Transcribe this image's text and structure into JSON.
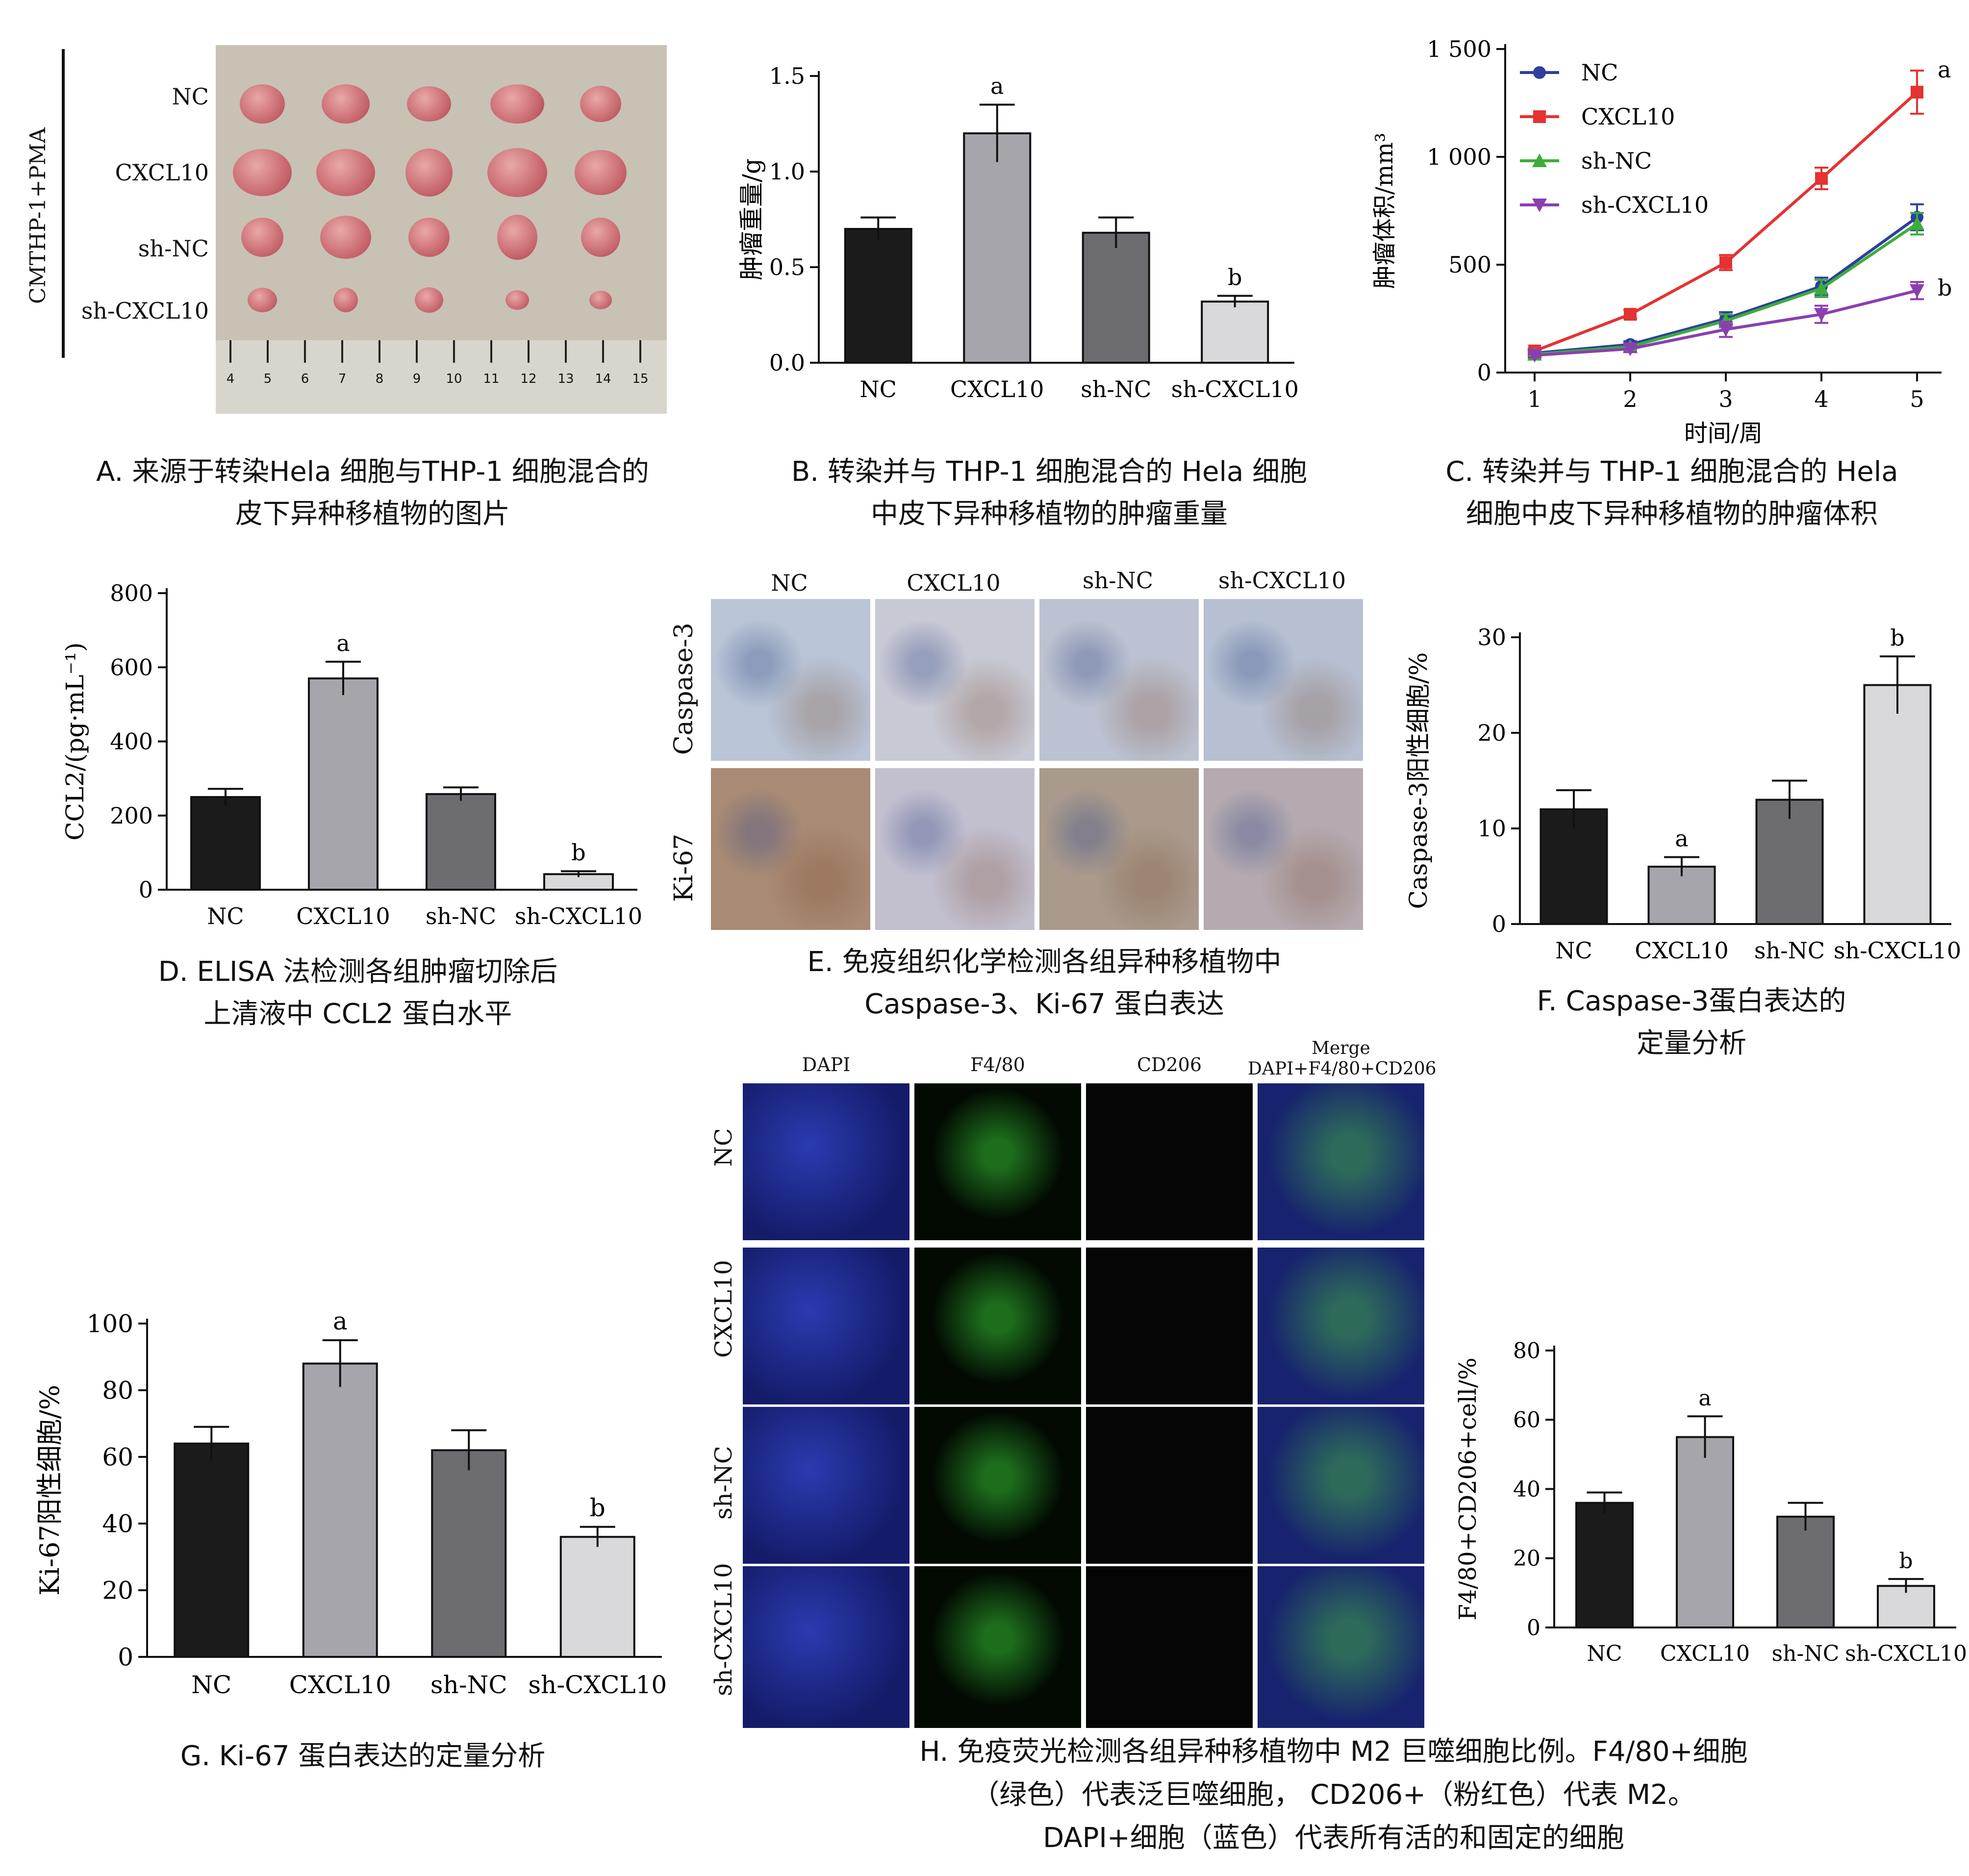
{
  "panels": {
    "A": {
      "side_label": "CMTHP-1+PMA",
      "rows": [
        "NC",
        "CXCL10",
        "sh-NC",
        "sh-CXCL10"
      ],
      "ruler_ticks": [
        "4",
        "5",
        "6",
        "7",
        "8",
        "9",
        "10",
        "11",
        "12",
        "13",
        "14",
        "15"
      ],
      "caption": [
        "A. 来源于转染Hela 细胞与THP-1 细胞混合的",
        "皮下异种移植物的图片"
      ]
    },
    "B": {
      "caption": [
        "B. 转染并与 THP-1 细胞混合的 Hela 细胞",
        "中皮下异种移植物的肿瘤重量"
      ]
    },
    "C": {
      "caption": [
        "C. 转染并与 THP-1 细胞混合的 Hela",
        "细胞中皮下异种移植物的肿瘤体积"
      ]
    },
    "D": {
      "caption": [
        "D. ELISA 法检测各组肿瘤切除后",
        "上清液中 CCL2 蛋白水平"
      ]
    },
    "E": {
      "columns": [
        "NC",
        "CXCL10",
        "sh-NC",
        "sh-CXCL10"
      ],
      "rows": [
        "Caspase-3",
        "Ki-67"
      ],
      "caption": [
        "E. 免疫组织化学检测各组异种移植物中",
        "Caspase-3、Ki-67 蛋白表达"
      ]
    },
    "F": {
      "caption": [
        "F. Caspase-3蛋白表达的",
        "定量分析"
      ]
    },
    "G": {
      "caption": [
        "G. Ki-67 蛋白表达的定量分析"
      ]
    },
    "H": {
      "columns": [
        "DAPI",
        "F4/80",
        "CD206",
        "Merge",
        "DAPI+F4/80+CD206"
      ],
      "rows": [
        "NC",
        "CXCL10",
        "sh-NC",
        "sh-CXCL10"
      ],
      "caption": [
        "H. 免疫荧光检测各组异种移植物中 M2 巨噬细胞比例。F4/80+细胞",
        "（绿色）代表泛巨噬细胞， CD206+（粉红色）代表 M2。",
        "DAPI+细胞（蓝色）代表所有活的和固定的细胞"
      ]
    }
  },
  "chart_data": [
    {
      "id": "B",
      "type": "bar",
      "categories": [
        "NC",
        "CXCL10",
        "sh-NC",
        "sh-CXCL10"
      ],
      "values": [
        0.7,
        1.2,
        0.68,
        0.32
      ],
      "errors": [
        0.06,
        0.15,
        0.08,
        0.03
      ],
      "annotations": [
        "",
        "a",
        "",
        "b"
      ],
      "ylabel": "肿瘤重量/g",
      "ylim": [
        0,
        1.5
      ],
      "yticks": [
        0.0,
        0.5,
        1.0,
        1.5
      ],
      "ytick_labels": [
        "0.0",
        "0.5",
        "1.0",
        "1.5"
      ],
      "colors": [
        "#1b1b1b",
        "#a5a5ab",
        "#6d6d71",
        "#d9d9dc"
      ]
    },
    {
      "id": "C",
      "type": "line",
      "x": [
        1,
        2,
        3,
        4,
        5
      ],
      "xlabel": "时间/周",
      "ylabel": "肿瘤体积/mm³",
      "ylim": [
        0,
        1500
      ],
      "yticks": [
        0,
        500,
        1000,
        1500
      ],
      "ytick_labels": [
        "0",
        "500",
        "1 000",
        "1 500"
      ],
      "series": [
        {
          "name": "NC",
          "values": [
            90,
            130,
            250,
            400,
            720
          ],
          "errors": [
            10,
            15,
            30,
            40,
            60
          ],
          "color": "#2e3f9e",
          "marker": "circle"
        },
        {
          "name": "CXCL10",
          "values": [
            100,
            270,
            510,
            900,
            1300
          ],
          "errors": [
            10,
            20,
            35,
            50,
            100
          ],
          "color": "#e53232",
          "marker": "square",
          "annotation": "a"
        },
        {
          "name": "sh-NC",
          "values": [
            85,
            120,
            240,
            390,
            690
          ],
          "errors": [
            10,
            15,
            30,
            40,
            50
          ],
          "color": "#3cad3c",
          "marker": "triangle-up"
        },
        {
          "name": "sh-CXCL10",
          "values": [
            80,
            110,
            200,
            270,
            380
          ],
          "errors": [
            10,
            15,
            35,
            40,
            40
          ],
          "color": "#8a3fb0",
          "marker": "triangle-down",
          "annotation": "b"
        }
      ]
    },
    {
      "id": "D",
      "type": "bar",
      "categories": [
        "NC",
        "CXCL10",
        "sh-NC",
        "sh-CXCL10"
      ],
      "values": [
        250,
        570,
        258,
        42
      ],
      "errors": [
        22,
        45,
        18,
        8
      ],
      "annotations": [
        "",
        "a",
        "",
        "b"
      ],
      "ylabel": "CCL2/(pg·mL⁻¹)",
      "ylim": [
        0,
        800
      ],
      "yticks": [
        0,
        200,
        400,
        600,
        800
      ],
      "ytick_labels": [
        "0",
        "200",
        "400",
        "600",
        "800"
      ],
      "colors": [
        "#1b1b1b",
        "#a5a5ab",
        "#6d6d71",
        "#d9d9dc"
      ]
    },
    {
      "id": "F",
      "type": "bar",
      "categories": [
        "NC",
        "CXCL10",
        "sh-NC",
        "sh-CXCL10"
      ],
      "values": [
        12,
        6,
        13,
        25
      ],
      "errors": [
        2,
        1,
        2,
        3
      ],
      "annotations": [
        "",
        "a",
        "",
        "b"
      ],
      "ylabel": "Caspase-3阳性细胞/%",
      "ylim": [
        0,
        30
      ],
      "yticks": [
        0,
        10,
        20,
        30
      ],
      "ytick_labels": [
        "0",
        "10",
        "20",
        "30"
      ],
      "colors": [
        "#1b1b1b",
        "#a5a5ab",
        "#6d6d71",
        "#d9d9dc"
      ]
    },
    {
      "id": "G",
      "type": "bar",
      "categories": [
        "NC",
        "CXCL10",
        "sh-NC",
        "sh-CXCL10"
      ],
      "values": [
        64,
        88,
        62,
        36
      ],
      "errors": [
        5,
        7,
        6,
        3
      ],
      "annotations": [
        "",
        "a",
        "",
        "b"
      ],
      "ylabel": "Ki-67阳性细胞/%",
      "ylim": [
        0,
        100
      ],
      "yticks": [
        0,
        20,
        40,
        60,
        80,
        100
      ],
      "ytick_labels": [
        "0",
        "20",
        "40",
        "60",
        "80",
        "100"
      ],
      "colors": [
        "#1b1b1b",
        "#a5a5ab",
        "#6d6d71",
        "#d9d9dc"
      ]
    },
    {
      "id": "H",
      "type": "bar",
      "categories": [
        "NC",
        "CXCL10",
        "sh-NC",
        "sh-CXCL10"
      ],
      "values": [
        36,
        55,
        32,
        12
      ],
      "errors": [
        3,
        6,
        4,
        2
      ],
      "annotations": [
        "",
        "a",
        "",
        "b"
      ],
      "ylabel": "F4/80+CD206+cell/%",
      "ylim": [
        0,
        80
      ],
      "yticks": [
        0,
        20,
        40,
        60,
        80
      ],
      "ytick_labels": [
        "0",
        "20",
        "40",
        "60",
        "80"
      ],
      "colors": [
        "#1b1b1b",
        "#a5a5ab",
        "#6d6d71",
        "#d9d9dc"
      ]
    }
  ]
}
